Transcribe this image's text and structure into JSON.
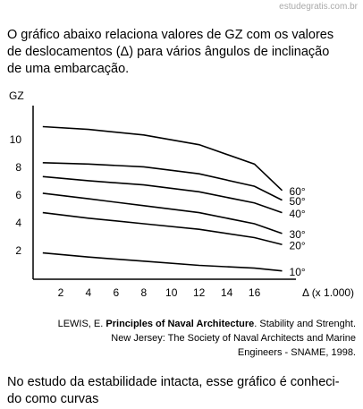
{
  "header": {
    "site": "estudegratis.com.br"
  },
  "question": {
    "lines": [
      "O gráfico abaixo relaciona valores de GZ com os valores",
      "de deslocamentos (Δ) para vários ângulos de inclinação",
      "de uma embarcação."
    ]
  },
  "chart_data": {
    "type": "line",
    "y_label": "GZ",
    "x_label": "Δ (x 1.000)",
    "x": [
      0.7,
      4,
      8,
      12,
      16,
      18
    ],
    "series": [
      {
        "name": "10°",
        "color": "#000000",
        "values": [
          1.9,
          1.6,
          1.3,
          1.0,
          0.8,
          0.6
        ]
      },
      {
        "name": "20°",
        "color": "#000000",
        "values": [
          4.8,
          4.4,
          4.0,
          3.6,
          3.0,
          2.5
        ]
      },
      {
        "name": "30°",
        "color": "#000000",
        "values": [
          6.2,
          5.8,
          5.3,
          4.8,
          4.0,
          3.3
        ]
      },
      {
        "name": "40°",
        "color": "#000000",
        "values": [
          7.4,
          7.1,
          6.8,
          6.3,
          5.5,
          4.8
        ]
      },
      {
        "name": "50°",
        "color": "#000000",
        "values": [
          8.4,
          8.3,
          8.1,
          7.6,
          6.7,
          5.7
        ]
      },
      {
        "name": "60°",
        "color": "#000000",
        "values": [
          11.0,
          10.8,
          10.4,
          9.7,
          8.3,
          6.4
        ]
      }
    ],
    "xlim": [
      0,
      19
    ],
    "ylim": [
      0,
      12
    ],
    "xticks": [
      2,
      4,
      6,
      8,
      10,
      12,
      14,
      16
    ],
    "yticks": [
      2,
      4,
      6,
      8,
      10
    ],
    "grid": false
  },
  "reference": {
    "author": "LEWIS, E.",
    "title": "Principles of Naval Architecture",
    "rest": ". Stability and Strenght.",
    "line2": "New Jersey: The Society of Naval Architects and Marine",
    "line3": "Engineers - SNAME, 1998."
  },
  "footer": {
    "lines": [
      "No estudo da estabilidade intacta, esse gráfico é conheci-",
      "do como curvas"
    ]
  }
}
